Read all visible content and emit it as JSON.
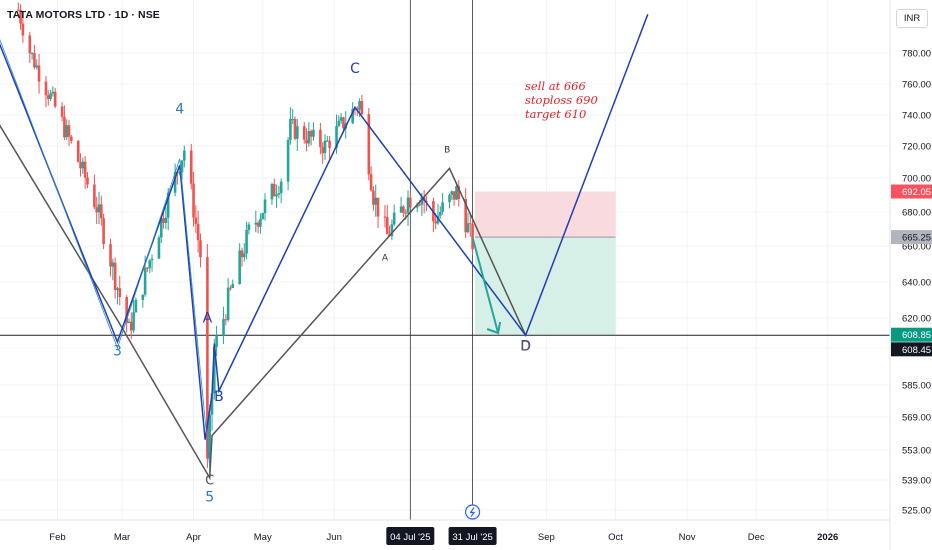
{
  "header": {
    "title": "TATA MOTORS LTD · 1D · NSE",
    "currency": "INR"
  },
  "note": {
    "lines": [
      "sell at 666",
      "stoploss 690",
      "target 610"
    ]
  },
  "colors": {
    "up": "#26a69a",
    "down": "#ef5350",
    "wave_blue": "#1f3fb5",
    "wave_gray": "#555555",
    "stop_zone": "#f8d4d9",
    "target_zone": "#d1eee6",
    "note": "#e1222b"
  },
  "chart_data": {
    "type": "candlestick",
    "interval": "1D",
    "ylim": [
      521,
      805
    ],
    "y_ticks": [
      525,
      539,
      553,
      569,
      585,
      600,
      620,
      640,
      660,
      680,
      700,
      720,
      740,
      760,
      780
    ],
    "x_ticks": [
      "Feb",
      "Mar",
      "Apr",
      "May",
      "Jun",
      "Sep",
      "Oct",
      "Nov",
      "Dec",
      "2026"
    ],
    "x_tick_dates": [
      "2025-02-01",
      "2025-03-01",
      "2025-04-01",
      "2025-05-01",
      "2025-06-01",
      "2025-09-01",
      "2025-10-01",
      "2025-11-01",
      "2025-12-01",
      "2026-01-01"
    ],
    "x_range": [
      "2025-01-01",
      "2026-01-15"
    ],
    "crosshair_labels": [
      {
        "date": "2025-07-04",
        "label": "04 Jul '25"
      },
      {
        "date": "2025-07-31",
        "label": "31 Jul '25"
      }
    ],
    "price_labels": [
      {
        "value": 692.05,
        "text": "692.05",
        "style": "stop"
      },
      {
        "value": 665.25,
        "text": "665.25",
        "style": "entry"
      },
      {
        "value": 608.85,
        "text": "608.85",
        "style": "last"
      },
      {
        "value": 608.45,
        "text": "608.45",
        "style": "cross"
      }
    ],
    "horizontal_line": 608.5,
    "position": {
      "start": "2025-08-01",
      "end": "2025-10-01",
      "entry": 665.25,
      "stop": 692.05,
      "target": 608.85
    },
    "pivots": [
      {
        "date": "2025-01-15",
        "price": 808
      },
      {
        "date": "2025-01-20",
        "price": 781
      },
      {
        "date": "2025-02-03",
        "price": 735
      },
      {
        "date": "2025-02-18",
        "price": 683
      },
      {
        "date": "2025-03-04",
        "price": 612
      },
      {
        "date": "2025-03-21",
        "price": 688
      },
      {
        "date": "2025-03-28",
        "price": 718
      },
      {
        "date": "2025-04-04",
        "price": 655
      },
      {
        "date": "2025-04-07",
        "price": 545
      },
      {
        "date": "2025-04-10",
        "price": 600
      },
      {
        "date": "2025-04-16",
        "price": 630
      },
      {
        "date": "2025-04-25",
        "price": 668
      },
      {
        "date": "2025-05-09",
        "price": 700
      },
      {
        "date": "2025-05-13",
        "price": 732
      },
      {
        "date": "2025-05-28",
        "price": 720
      },
      {
        "date": "2025-06-12",
        "price": 748
      },
      {
        "date": "2025-06-18",
        "price": 690
      },
      {
        "date": "2025-06-24",
        "price": 666
      },
      {
        "date": "2025-07-03",
        "price": 688
      },
      {
        "date": "2025-07-09",
        "price": 690
      },
      {
        "date": "2025-07-14",
        "price": 675
      },
      {
        "date": "2025-07-24",
        "price": 692
      },
      {
        "date": "2025-07-31",
        "price": 662
      }
    ],
    "annotations": [
      {
        "text": "4",
        "date": "2025-03-26",
        "price": 741,
        "color": "blue"
      },
      {
        "text": "3",
        "date": "2025-02-27",
        "price": 597,
        "color": "blue"
      },
      {
        "text": "5",
        "date": "2025-04-08",
        "price": 529,
        "color": "blue"
      },
      {
        "text": "C",
        "date": "2025-04-08",
        "price": 537,
        "color": "gray"
      },
      {
        "text": "A",
        "date": "2025-04-07",
        "price": 617,
        "color": "blue"
      },
      {
        "text": "B",
        "date": "2025-04-12",
        "price": 577,
        "color": "blue"
      },
      {
        "text": "C",
        "date": "2025-06-10",
        "price": 767,
        "color": "blue"
      },
      {
        "text": "B",
        "date": "2025-07-20",
        "price": 716,
        "color": "gray-small"
      },
      {
        "text": "A",
        "date": "2025-06-23",
        "price": 652,
        "color": "gray-small"
      },
      {
        "text": "D",
        "date": "2025-08-23",
        "price": 599,
        "color": "blue"
      },
      {
        "text": "D",
        "date": "2025-08-23",
        "price": 599,
        "color": "gray"
      }
    ],
    "wave_blue": [
      {
        "date": "2025-01-01",
        "price": 808
      },
      {
        "date": "2025-02-27",
        "price": 604
      },
      {
        "date": "2025-03-26",
        "price": 708
      },
      {
        "date": "2025-04-06",
        "price": 558
      },
      {
        "date": "2025-04-09",
        "price": 580
      },
      {
        "date": "2025-04-10",
        "price": 603
      },
      {
        "date": "2025-04-12",
        "price": 582
      },
      {
        "date": "2025-06-10",
        "price": 745
      },
      {
        "date": "2025-08-23",
        "price": 608.5
      },
      {
        "date": "2025-10-15",
        "price": 805
      }
    ],
    "wave_gray": [
      {
        "date": "2025-01-01",
        "price": 748
      },
      {
        "date": "2025-02-28",
        "price": 616
      },
      {
        "date": "2025-04-08",
        "price": 540
      },
      {
        "date": "2025-04-09",
        "price": 560
      },
      {
        "date": "2025-06-21",
        "price": 660
      },
      {
        "date": "2025-07-21",
        "price": 706
      },
      {
        "date": "2025-08-23",
        "price": 608.5
      }
    ],
    "projection_arrow": [
      {
        "date": "2025-07-31",
        "price": 665
      },
      {
        "date": "2025-08-05",
        "price": 610
      }
    ]
  }
}
